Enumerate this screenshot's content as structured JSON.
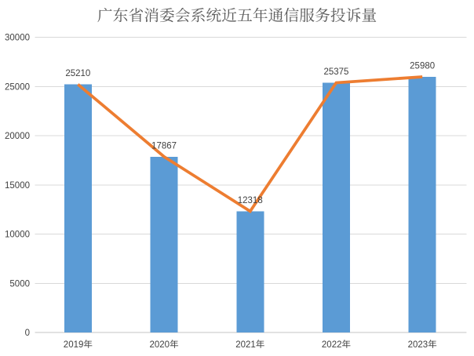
{
  "title": "广东省消委会系统近五年通信服务投诉量",
  "chart_data": {
    "type": "bar",
    "title": "广东省消委会系统近五年通信服务投诉量",
    "categories": [
      "2019年",
      "2020年",
      "2021年",
      "2022年",
      "2023年"
    ],
    "series": [
      {
        "type": "bar",
        "values": [
          25210,
          17867,
          12318,
          25375,
          25980
        ],
        "color": "#5B9BD5"
      },
      {
        "type": "line",
        "values": [
          25210,
          17867,
          12318,
          25375,
          25980
        ],
        "color": "#ED7D31"
      }
    ],
    "data_labels": [
      "25210",
      "17867",
      "12318",
      "25375",
      "25980"
    ],
    "xlabel": "",
    "ylabel": "",
    "ylim": [
      0,
      30000
    ],
    "ytick_step": 5000,
    "yticks": [
      "0",
      "5000",
      "10000",
      "15000",
      "20000",
      "25000",
      "30000"
    ],
    "grid": true,
    "legend_position": "none",
    "colors": {
      "background": "#FFFFFF",
      "gridline": "#D9D9D9",
      "axis_line": "#C6C6C6",
      "tick_label": "#404040",
      "data_label": "#404040",
      "title": "#595959"
    }
  }
}
